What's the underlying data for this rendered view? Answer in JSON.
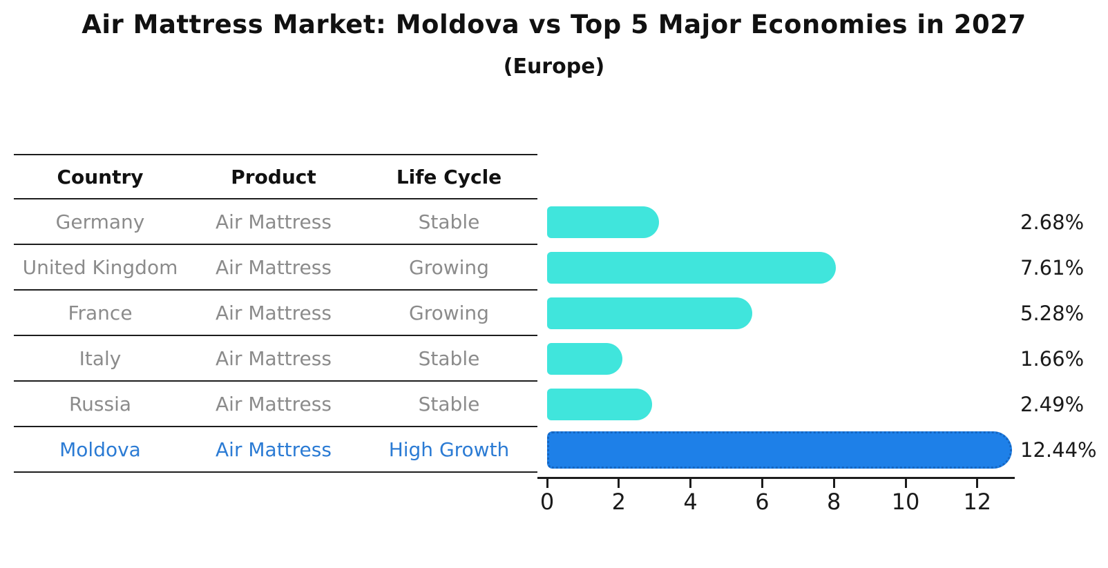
{
  "title": "Air Mattress Market: Moldova vs Top 5 Major Economies in 2027",
  "subtitle": "(Europe)",
  "table": {
    "columns": [
      "Country",
      "Product",
      "Life Cycle"
    ]
  },
  "chart_data": {
    "type": "bar",
    "orientation": "horizontal",
    "title": "Air Mattress Market: Moldova vs Top 5 Major Economies in 2027",
    "subtitle": "(Europe)",
    "categories": [
      "Germany",
      "United Kingdom",
      "France",
      "Italy",
      "Russia",
      "Moldova"
    ],
    "values": [
      2.68,
      7.61,
      5.28,
      1.66,
      2.49,
      12.44
    ],
    "rows": [
      {
        "country": "Germany",
        "product": "Air Mattress",
        "life_cycle": "Stable",
        "value": 2.68,
        "label": "2.68%",
        "highlight": false
      },
      {
        "country": "United Kingdom",
        "product": "Air Mattress",
        "life_cycle": "Growing",
        "value": 7.61,
        "label": "7.61%",
        "highlight": false
      },
      {
        "country": "France",
        "product": "Air Mattress",
        "life_cycle": "Growing",
        "value": 5.28,
        "label": "5.28%",
        "highlight": false
      },
      {
        "country": "Italy",
        "product": "Air Mattress",
        "life_cycle": "Stable",
        "value": 1.66,
        "label": "1.66%",
        "highlight": false
      },
      {
        "country": "Russia",
        "product": "Air Mattress",
        "life_cycle": "Stable",
        "value": 2.49,
        "label": "2.49%",
        "highlight": false
      },
      {
        "country": "Moldova",
        "product": "Air Mattress",
        "life_cycle": "High Growth",
        "value": 12.44,
        "label": "12.44%",
        "highlight": true
      }
    ],
    "xlabel": "",
    "ylabel": "",
    "xlim": [
      0,
      13
    ],
    "x_ticks": [
      0,
      2,
      4,
      6,
      8,
      10,
      12
    ],
    "grid": false,
    "legend": "none",
    "colors": {
      "bar": "#40E5DC",
      "highlight_bar": "#1E80E8",
      "highlight_border": "#1565C0",
      "row_text": "#8B8B8B",
      "highlight_text": "#2B7BD4",
      "header_text": "#111111",
      "axis": "#1C1C1C"
    }
  }
}
